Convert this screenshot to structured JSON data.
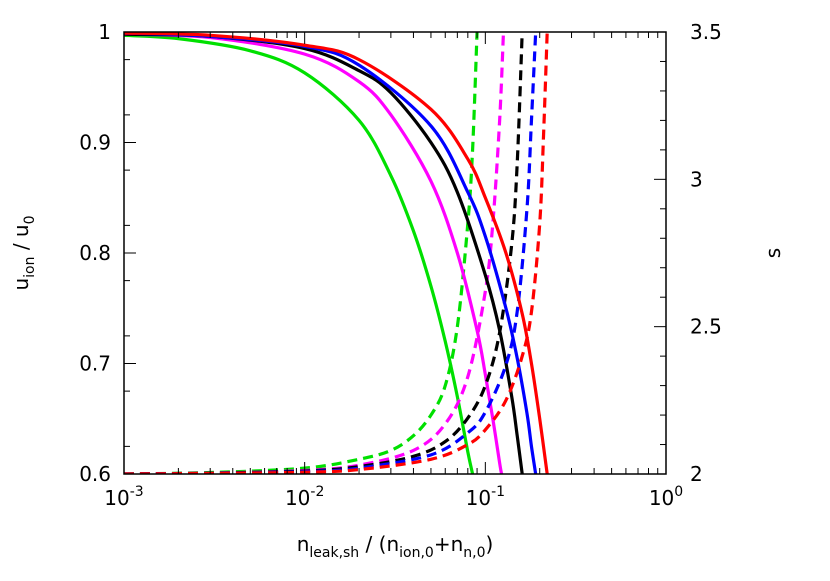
{
  "chart_data": {
    "type": "line",
    "x_axis": {
      "scale": "log",
      "range": [
        0.001,
        1
      ],
      "ticks": [
        {
          "value": 0.001,
          "base": "10",
          "exp": "-3"
        },
        {
          "value": 0.01,
          "base": "10",
          "exp": "-2"
        },
        {
          "value": 0.1,
          "base": "10",
          "exp": "-1"
        },
        {
          "value": 1,
          "base": "10",
          "exp": "0"
        }
      ],
      "label": {
        "pre": "n",
        "sub1": "leak,sh",
        "mid": " / (n",
        "sub2": "ion,0",
        "mid2": "+n",
        "sub3": "n,0",
        "post": ")"
      }
    },
    "y_left": {
      "range": [
        0.6,
        1.0
      ],
      "ticks": [
        {
          "value": 0.6,
          "label": "0.6"
        },
        {
          "value": 0.7,
          "label": "0.7"
        },
        {
          "value": 0.8,
          "label": "0.8"
        },
        {
          "value": 0.9,
          "label": "0.9"
        },
        {
          "value": 1.0,
          "label": "1"
        }
      ],
      "label": {
        "pre": "u",
        "sub1": "ion",
        "mid": " / u",
        "sub2": "0"
      }
    },
    "y_right": {
      "range": [
        2.0,
        3.5
      ],
      "ticks": [
        {
          "value": 2.0,
          "label": "2"
        },
        {
          "value": 2.5,
          "label": "2.5"
        },
        {
          "value": 3.0,
          "label": "3"
        },
        {
          "value": 3.5,
          "label": "3.5"
        }
      ],
      "label": "s"
    },
    "grid": false,
    "legend": "none",
    "series": [
      {
        "color": "#00e000",
        "axis": "left",
        "dash": "solid",
        "points": [
          [
            0.001,
            0.997
          ],
          [
            0.002,
            0.994
          ],
          [
            0.005,
            0.983
          ],
          [
            0.01,
            0.963
          ],
          [
            0.02,
            0.92
          ],
          [
            0.03,
            0.87
          ],
          [
            0.04,
            0.82
          ],
          [
            0.05,
            0.77
          ],
          [
            0.06,
            0.72
          ],
          [
            0.07,
            0.67
          ],
          [
            0.08,
            0.62
          ],
          [
            0.085,
            0.6
          ]
        ]
      },
      {
        "color": "#00e000",
        "axis": "right",
        "dash": "dashed",
        "points": [
          [
            0.001,
            2.0
          ],
          [
            0.003,
            2.005
          ],
          [
            0.01,
            2.02
          ],
          [
            0.02,
            2.05
          ],
          [
            0.03,
            2.08
          ],
          [
            0.04,
            2.13
          ],
          [
            0.05,
            2.2
          ],
          [
            0.06,
            2.3
          ],
          [
            0.07,
            2.5
          ],
          [
            0.08,
            2.85
          ],
          [
            0.085,
            3.1
          ],
          [
            0.09,
            3.5
          ]
        ]
      },
      {
        "color": "#ff00ff",
        "axis": "left",
        "dash": "solid",
        "points": [
          [
            0.001,
            0.998
          ],
          [
            0.003,
            0.995
          ],
          [
            0.01,
            0.98
          ],
          [
            0.02,
            0.955
          ],
          [
            0.03,
            0.925
          ],
          [
            0.05,
            0.865
          ],
          [
            0.07,
            0.8
          ],
          [
            0.09,
            0.73
          ],
          [
            0.1,
            0.69
          ],
          [
            0.11,
            0.65
          ],
          [
            0.12,
            0.61
          ],
          [
            0.123,
            0.6
          ]
        ]
      },
      {
        "color": "#ff00ff",
        "axis": "right",
        "dash": "dashed",
        "points": [
          [
            0.001,
            2.0
          ],
          [
            0.003,
            2.003
          ],
          [
            0.01,
            2.012
          ],
          [
            0.02,
            2.03
          ],
          [
            0.04,
            2.08
          ],
          [
            0.06,
            2.17
          ],
          [
            0.08,
            2.33
          ],
          [
            0.1,
            2.62
          ],
          [
            0.11,
            2.85
          ],
          [
            0.12,
            3.2
          ],
          [
            0.126,
            3.5
          ]
        ]
      },
      {
        "color": "#000000",
        "axis": "left",
        "dash": "solid",
        "points": [
          [
            0.001,
            0.998
          ],
          [
            0.003,
            0.996
          ],
          [
            0.01,
            0.985
          ],
          [
            0.02,
            0.965
          ],
          [
            0.03,
            0.945
          ],
          [
            0.05,
            0.9
          ],
          [
            0.07,
            0.855
          ],
          [
            0.1,
            0.78
          ],
          [
            0.12,
            0.73
          ],
          [
            0.14,
            0.67
          ],
          [
            0.15,
            0.635
          ],
          [
            0.16,
            0.6
          ]
        ]
      },
      {
        "color": "#000000",
        "axis": "right",
        "dash": "dashed",
        "points": [
          [
            0.001,
            2.0
          ],
          [
            0.003,
            2.003
          ],
          [
            0.01,
            2.01
          ],
          [
            0.02,
            2.025
          ],
          [
            0.04,
            2.06
          ],
          [
            0.06,
            2.11
          ],
          [
            0.08,
            2.19
          ],
          [
            0.1,
            2.3
          ],
          [
            0.12,
            2.48
          ],
          [
            0.14,
            2.78
          ],
          [
            0.15,
            3.05
          ],
          [
            0.16,
            3.5
          ]
        ]
      },
      {
        "color": "#0000ff",
        "axis": "left",
        "dash": "solid",
        "points": [
          [
            0.001,
            0.999
          ],
          [
            0.003,
            0.996
          ],
          [
            0.01,
            0.987
          ],
          [
            0.02,
            0.97
          ],
          [
            0.05,
            0.915
          ],
          [
            0.08,
            0.855
          ],
          [
            0.1,
            0.815
          ],
          [
            0.13,
            0.75
          ],
          [
            0.15,
            0.705
          ],
          [
            0.17,
            0.655
          ],
          [
            0.18,
            0.625
          ],
          [
            0.19,
            0.6
          ]
        ]
      },
      {
        "color": "#0000ff",
        "axis": "right",
        "dash": "dashed",
        "points": [
          [
            0.001,
            2.0
          ],
          [
            0.003,
            2.002
          ],
          [
            0.01,
            2.008
          ],
          [
            0.02,
            2.02
          ],
          [
            0.05,
            2.065
          ],
          [
            0.08,
            2.14
          ],
          [
            0.1,
            2.21
          ],
          [
            0.13,
            2.37
          ],
          [
            0.15,
            2.55
          ],
          [
            0.17,
            2.9
          ],
          [
            0.18,
            3.2
          ],
          [
            0.19,
            3.5
          ]
        ]
      },
      {
        "color": "#ff0000",
        "axis": "left",
        "dash": "solid",
        "points": [
          [
            0.001,
            0.999
          ],
          [
            0.003,
            0.997
          ],
          [
            0.01,
            0.988
          ],
          [
            0.02,
            0.975
          ],
          [
            0.05,
            0.93
          ],
          [
            0.08,
            0.885
          ],
          [
            0.1,
            0.85
          ],
          [
            0.13,
            0.8
          ],
          [
            0.16,
            0.745
          ],
          [
            0.18,
            0.7
          ],
          [
            0.2,
            0.65
          ],
          [
            0.22,
            0.6
          ]
        ]
      },
      {
        "color": "#ff0000",
        "axis": "right",
        "dash": "dashed",
        "points": [
          [
            0.001,
            2.0
          ],
          [
            0.003,
            2.002
          ],
          [
            0.01,
            2.006
          ],
          [
            0.02,
            2.015
          ],
          [
            0.05,
            2.05
          ],
          [
            0.08,
            2.1
          ],
          [
            0.1,
            2.15
          ],
          [
            0.13,
            2.25
          ],
          [
            0.16,
            2.4
          ],
          [
            0.18,
            2.55
          ],
          [
            0.2,
            2.85
          ],
          [
            0.21,
            3.15
          ],
          [
            0.22,
            3.5
          ]
        ]
      }
    ]
  }
}
